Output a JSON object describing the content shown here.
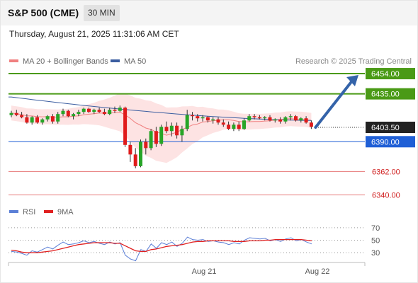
{
  "header": {
    "title": "S&P 500 (CME)",
    "timeframe": "30 MIN"
  },
  "datetime": "Thursday, August 21, 2025 11:31:06 AM CET",
  "legend": [
    {
      "name": "MA 20 + Bollinger Bands",
      "color": "#f08080"
    },
    {
      "name": "MA 50",
      "color": "#3a5da0"
    }
  ],
  "rsi_legend": [
    {
      "name": "RSI",
      "color": "#5b7fd6"
    },
    {
      "name": "9MA",
      "color": "#e02020"
    }
  ],
  "credit": "Research © 2025 Trading Central",
  "colors": {
    "up": "#27a527",
    "down": "#e01b1b",
    "target": "#4a9a16",
    "current": "#222222",
    "pivot": "#1f5fd6",
    "support": "#e05555",
    "arrow": "#3463a9"
  },
  "chart_data": [
    {
      "type": "candlestick",
      "x_labels": [
        "Aug 21",
        "Aug 22"
      ],
      "ylim": [
        6335,
        6468
      ],
      "levels": [
        {
          "label": "6454.00",
          "value": 6454.0,
          "kind": "target"
        },
        {
          "label": "6435.00",
          "value": 6435.0,
          "kind": "target"
        },
        {
          "label": "6403.50",
          "value": 6403.5,
          "kind": "current"
        },
        {
          "label": "6390.00",
          "value": 6390.0,
          "kind": "pivot"
        },
        {
          "label": "6362.00",
          "value": 6362.0,
          "kind": "support"
        },
        {
          "label": "6340.00",
          "value": 6340.0,
          "kind": "support"
        }
      ],
      "projection": {
        "from": 6403.5,
        "to": 6454.0
      },
      "candles": [
        [
          6415,
          6419,
          6413,
          6417
        ],
        [
          6417,
          6420,
          6414,
          6415
        ],
        [
          6415,
          6418,
          6412,
          6413
        ],
        [
          6413,
          6416,
          6407,
          6408
        ],
        [
          6408,
          6414,
          6406,
          6413
        ],
        [
          6413,
          6415,
          6407,
          6408
        ],
        [
          6408,
          6412,
          6406,
          6411
        ],
        [
          6411,
          6415,
          6409,
          6414
        ],
        [
          6414,
          6416,
          6407,
          6409
        ],
        [
          6409,
          6418,
          6407,
          6416
        ],
        [
          6416,
          6421,
          6414,
          6419
        ],
        [
          6419,
          6420,
          6413,
          6414
        ],
        [
          6414,
          6417,
          6411,
          6416
        ],
        [
          6416,
          6420,
          6414,
          6418
        ],
        [
          6418,
          6422,
          6416,
          6421
        ],
        [
          6421,
          6422,
          6417,
          6418
        ],
        [
          6418,
          6421,
          6416,
          6420
        ],
        [
          6420,
          6422,
          6417,
          6418
        ],
        [
          6418,
          6421,
          6415,
          6416
        ],
        [
          6416,
          6422,
          6415,
          6420
        ],
        [
          6420,
          6423,
          6417,
          6419
        ],
        [
          6419,
          6424,
          6418,
          6422
        ],
        [
          6422,
          6423,
          6385,
          6387
        ],
        [
          6387,
          6390,
          6371,
          6378
        ],
        [
          6378,
          6384,
          6365,
          6367
        ],
        [
          6367,
          6392,
          6366,
          6390
        ],
        [
          6390,
          6393,
          6378,
          6384
        ],
        [
          6384,
          6402,
          6382,
          6400
        ],
        [
          6400,
          6404,
          6385,
          6388
        ],
        [
          6388,
          6406,
          6386,
          6404
        ],
        [
          6404,
          6409,
          6398,
          6400
        ],
        [
          6400,
          6408,
          6395,
          6405
        ],
        [
          6405,
          6408,
          6393,
          6396
        ],
        [
          6396,
          6405,
          6390,
          6402
        ],
        [
          6402,
          6420,
          6400,
          6415
        ],
        [
          6415,
          6418,
          6410,
          6414
        ],
        [
          6414,
          6416,
          6409,
          6412
        ],
        [
          6412,
          6415,
          6409,
          6413
        ],
        [
          6413,
          6414,
          6408,
          6410
        ],
        [
          6410,
          6413,
          6407,
          6411
        ],
        [
          6411,
          6413,
          6406,
          6408
        ],
        [
          6408,
          6411,
          6404,
          6406
        ],
        [
          6406,
          6409,
          6401,
          6402
        ],
        [
          6402,
          6408,
          6400,
          6406
        ],
        [
          6406,
          6409,
          6400,
          6402
        ],
        [
          6402,
          6412,
          6401,
          6410
        ],
        [
          6410,
          6416,
          6409,
          6414
        ],
        [
          6414,
          6416,
          6411,
          6413
        ],
        [
          6413,
          6415,
          6411,
          6412
        ],
        [
          6412,
          6414,
          6410,
          6413
        ],
        [
          6413,
          6415,
          6409,
          6410
        ],
        [
          6410,
          6412,
          6408,
          6411
        ],
        [
          6411,
          6413,
          6407,
          6409
        ],
        [
          6409,
          6414,
          6407,
          6413
        ],
        [
          6413,
          6416,
          6410,
          6414
        ],
        [
          6414,
          6415,
          6409,
          6410
        ],
        [
          6410,
          6413,
          6408,
          6412
        ],
        [
          6412,
          6414,
          6407,
          6408
        ],
        [
          6408,
          6410,
          6402,
          6404
        ]
      ],
      "ma50_start": 6432,
      "ma50_end": 6410,
      "ma20_start": 6417,
      "ma20_end": 6410,
      "band_width_start": 7,
      "band_width_end": 7
    },
    {
      "type": "line",
      "ylim": [
        20,
        80
      ],
      "yticks": [
        70,
        50,
        30
      ],
      "series": [
        {
          "name": "RSI",
          "values": [
            32,
            31,
            29,
            26,
            33,
            31,
            35,
            39,
            36,
            42,
            47,
            43,
            44,
            46,
            49,
            46,
            48,
            45,
            43,
            47,
            44,
            46,
            26,
            20,
            17,
            35,
            32,
            44,
            37,
            46,
            43,
            47,
            40,
            45,
            55,
            51,
            50,
            51,
            48,
            49,
            47,
            46,
            43,
            46,
            44,
            50,
            54,
            53,
            52,
            53,
            49,
            51,
            48,
            52,
            54,
            49,
            51,
            47,
            44
          ]
        },
        {
          "name": "9MA",
          "values": [
            34,
            33,
            31,
            30,
            30,
            30,
            31,
            32,
            33,
            35,
            37,
            39,
            41,
            43,
            44,
            45,
            46,
            46,
            46,
            46,
            45,
            45,
            41,
            37,
            33,
            32,
            32,
            35,
            36,
            38,
            40,
            41,
            42,
            43,
            45,
            47,
            48,
            48,
            49,
            49,
            49,
            49,
            49,
            48,
            48,
            48,
            49,
            49,
            49,
            50,
            50,
            51,
            51,
            51,
            51,
            51,
            51,
            50,
            49
          ]
        }
      ]
    }
  ]
}
